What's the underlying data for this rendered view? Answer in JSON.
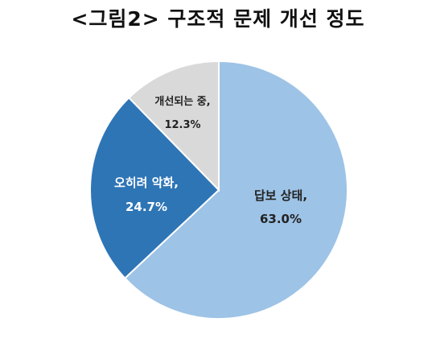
{
  "chart_data": {
    "type": "pie",
    "title": "<그림2> 구조적 문제 개선 정도",
    "slices": [
      {
        "label": "답보 상태,",
        "value_text": "63.0%",
        "value": 63.0,
        "color": "#9dc3e6",
        "text_color": "#222222"
      },
      {
        "label": "오히려 악화,",
        "value_text": "24.7%",
        "value": 24.7,
        "color": "#2e75b6",
        "text_color": "#ffffff"
      },
      {
        "label": "개선되는 중,",
        "value_text": "12.3%",
        "value": 12.3,
        "color": "#d9d9d9",
        "text_color": "#222222"
      }
    ],
    "start_angle_deg": 0,
    "direction": "clockwise",
    "legend": "none"
  }
}
